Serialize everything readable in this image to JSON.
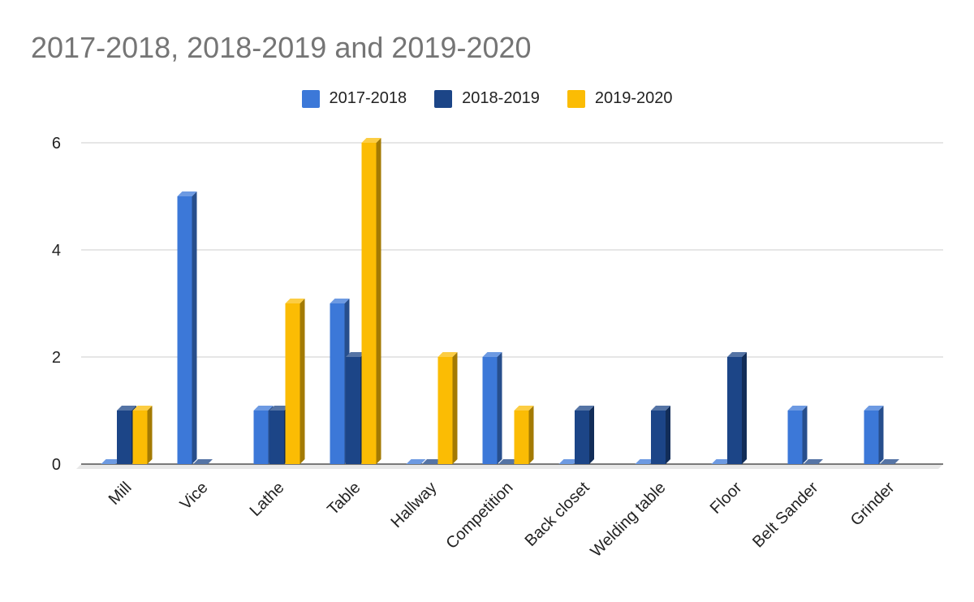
{
  "chart_data": {
    "type": "bar",
    "title": "2017-2018, 2018-2019 and 2019-2020",
    "xlabel": "",
    "ylabel": "",
    "ylim": [
      0,
      6
    ],
    "yticks": [
      "0",
      "2",
      "4",
      "6"
    ],
    "grid": true,
    "legend_position": "top-center",
    "categories": [
      "Mill",
      "Vice",
      "Lathe",
      "Table",
      "Hallway",
      "Competition",
      "Back closet",
      "Welding table",
      "Floor",
      "Belt Sander",
      "Grinder"
    ],
    "series": [
      {
        "name": "2017-2018",
        "color": "#3c78d8",
        "values": [
          0,
          5,
          1,
          3,
          0,
          2,
          0,
          0,
          0,
          1,
          1
        ]
      },
      {
        "name": "2018-2019",
        "color": "#1c4587",
        "values": [
          1,
          0,
          1,
          2,
          0,
          0,
          1,
          1,
          2,
          0,
          0
        ]
      },
      {
        "name": "2019-2020",
        "color": "#fbbc04",
        "values": [
          1,
          null,
          3,
          6,
          2,
          1,
          null,
          null,
          null,
          null,
          null
        ]
      }
    ]
  }
}
